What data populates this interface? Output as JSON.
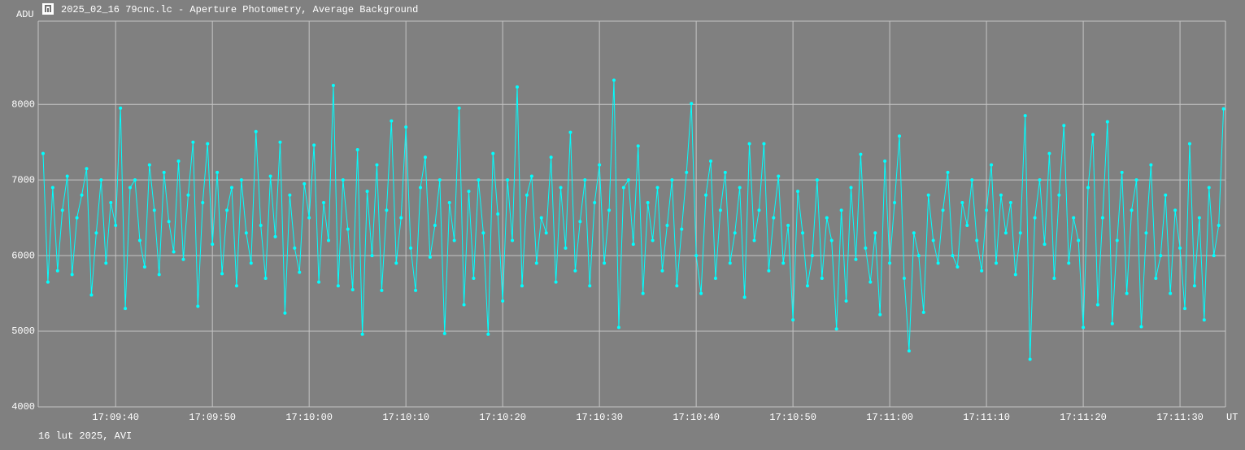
{
  "chart_data": {
    "type": "line",
    "title": "2025_02_16 79cnc.lc - Aperture Photometry, Average Background",
    "y_label": "ADU",
    "x_label": "UT",
    "footer": "16 lut 2025, AVI",
    "grid": true,
    "ylim": [
      4000,
      9100
    ],
    "yticks": [
      4000,
      5000,
      6000,
      7000,
      8000
    ],
    "xlim": [
      61772.0,
      61894.7
    ],
    "xticks": [
      {
        "value": 61780,
        "label": "17:09:40"
      },
      {
        "value": 61790,
        "label": "17:09:50"
      },
      {
        "value": 61800,
        "label": "17:10:00"
      },
      {
        "value": 61810,
        "label": "17:10:10"
      },
      {
        "value": 61820,
        "label": "17:10:20"
      },
      {
        "value": 61830,
        "label": "17:10:30"
      },
      {
        "value": 61840,
        "label": "17:10:40"
      },
      {
        "value": 61850,
        "label": "17:10:50"
      },
      {
        "value": 61860,
        "label": "17:11:00"
      },
      {
        "value": 61870,
        "label": "17:11:10"
      },
      {
        "value": 61880,
        "label": "17:11:20"
      },
      {
        "value": 61890,
        "label": "17:11:30"
      }
    ],
    "x": [
      61772.5,
      61773,
      61773.5,
      61774,
      61774.5,
      61775,
      61775.5,
      61776,
      61776.5,
      61777,
      61777.5,
      61778,
      61778.5,
      61779,
      61779.5,
      61780,
      61780.5,
      61781,
      61781.5,
      61782,
      61782.5,
      61783,
      61783.5,
      61784,
      61784.5,
      61785,
      61785.5,
      61786,
      61786.5,
      61787,
      61787.5,
      61788,
      61788.5,
      61789,
      61789.5,
      61790,
      61790.5,
      61791,
      61791.5,
      61792,
      61792.5,
      61793,
      61793.5,
      61794,
      61794.5,
      61795,
      61795.5,
      61796,
      61796.5,
      61797,
      61797.5,
      61798,
      61798.5,
      61799,
      61799.5,
      61800,
      61800.5,
      61801,
      61801.5,
      61802,
      61802.5,
      61803,
      61803.5,
      61804,
      61804.5,
      61805,
      61805.5,
      61806,
      61806.5,
      61807,
      61807.5,
      61808,
      61808.5,
      61809,
      61809.5,
      61810,
      61810.5,
      61811,
      61811.5,
      61812,
      61812.5,
      61813,
      61813.5,
      61814,
      61814.5,
      61815,
      61815.5,
      61816,
      61816.5,
      61817,
      61817.5,
      61818,
      61818.5,
      61819,
      61819.5,
      61820,
      61820.5,
      61821,
      61821.5,
      61822,
      61822.5,
      61823,
      61823.5,
      61824,
      61824.5,
      61825,
      61825.5,
      61826,
      61826.5,
      61827,
      61827.5,
      61828,
      61828.5,
      61829,
      61829.5,
      61830,
      61830.5,
      61831,
      61831.5,
      61832,
      61832.5,
      61833,
      61833.5,
      61834,
      61834.5,
      61835,
      61835.5,
      61836,
      61836.5,
      61837,
      61837.5,
      61838,
      61838.5,
      61839,
      61839.5,
      61840,
      61840.5,
      61841,
      61841.5,
      61842,
      61842.5,
      61843,
      61843.5,
      61844,
      61844.5,
      61845,
      61845.5,
      61846,
      61846.5,
      61847,
      61847.5,
      61848,
      61848.5,
      61849,
      61849.5,
      61850,
      61850.5,
      61851,
      61851.5,
      61852,
      61852.5,
      61853,
      61853.5,
      61854,
      61854.5,
      61855,
      61855.5,
      61856,
      61856.5,
      61857,
      61857.5,
      61858,
      61858.5,
      61859,
      61859.5,
      61860,
      61860.5,
      61861,
      61861.5,
      61862,
      61862.5,
      61863,
      61863.5,
      61864,
      61864.5,
      61865,
      61865.5,
      61866,
      61866.5,
      61867,
      61867.5,
      61868,
      61868.5,
      61869,
      61869.5,
      61870,
      61870.5,
      61871,
      61871.5,
      61872,
      61872.5,
      61873,
      61873.5,
      61874,
      61874.5,
      61875,
      61875.5,
      61876,
      61876.5,
      61877,
      61877.5,
      61878,
      61878.5,
      61879,
      61879.5,
      61880,
      61880.5,
      61881,
      61881.5,
      61882,
      61882.5,
      61883,
      61883.5,
      61884,
      61884.5,
      61885,
      61885.5,
      61886,
      61886.5,
      61887,
      61887.5,
      61888,
      61888.5,
      61889,
      61889.5,
      61890,
      61890.5,
      61891,
      61891.5,
      61892,
      61892.5,
      61893,
      61893.5,
      61894,
      61894.5
    ],
    "series": [
      {
        "color": "#00ffff",
        "values": [
          7350,
          5650,
          6900,
          5800,
          6600,
          7050,
          5750,
          6500,
          6800,
          7150,
          5480,
          6300,
          7000,
          5900,
          6700,
          6400,
          7950,
          5300,
          6900,
          7000,
          6200,
          5850,
          7200,
          6600,
          5750,
          7100,
          6450,
          6050,
          7250,
          5950,
          6800,
          7500,
          5330,
          6700,
          7480,
          6150,
          7100,
          5760,
          6600,
          6900,
          5600,
          7000,
          6300,
          5900,
          7640,
          6400,
          5700,
          7050,
          6250,
          7500,
          5240,
          6800,
          6100,
          5780,
          6950,
          6500,
          7460,
          5650,
          6700,
          6200,
          8250,
          5600,
          7000,
          6350,
          5550,
          7400,
          4960,
          6850,
          6000,
          7200,
          5540,
          6600,
          7780,
          5900,
          6500,
          7700,
          6100,
          5540,
          6900,
          7300,
          5980,
          6400,
          7000,
          4970,
          6700,
          6200,
          7950,
          5350,
          6850,
          5700,
          7000,
          6300,
          4960,
          7350,
          6550,
          5400,
          7000,
          6200,
          8230,
          5600,
          6800,
          7050,
          5900,
          6500,
          6300,
          7300,
          5650,
          6900,
          6100,
          7630,
          5800,
          6450,
          7000,
          5600,
          6700,
          7200,
          5900,
          6600,
          8320,
          5050,
          6900,
          7000,
          6150,
          7450,
          5500,
          6700,
          6200,
          6900,
          5800,
          6400,
          7000,
          5600,
          6350,
          7100,
          8010,
          6000,
          5500,
          6800,
          7250,
          5700,
          6600,
          7100,
          5900,
          6300,
          6900,
          5450,
          7480,
          6200,
          6600,
          7480,
          5800,
          6500,
          7050,
          5900,
          6400,
          5150,
          6850,
          6300,
          5600,
          6000,
          7000,
          5700,
          6500,
          6200,
          5030,
          6600,
          5400,
          6900,
          5950,
          7340,
          6100,
          5650,
          6300,
          5220,
          7250,
          5900,
          6700,
          7580,
          5700,
          4740,
          6300,
          6000,
          5250,
          6800,
          6200,
          5900,
          6600,
          7100,
          6000,
          5850,
          6700,
          6400,
          7000,
          6200,
          5800,
          6600,
          7200,
          5900,
          6800,
          6300,
          6700,
          5750,
          6300,
          7850,
          4630,
          6500,
          7000,
          6150,
          7350,
          5700,
          6800,
          7720,
          5900,
          6500,
          6200,
          5050,
          6900,
          7600,
          5350,
          6500,
          7770,
          5100,
          6200,
          7100,
          5500,
          6600,
          7000,
          5060,
          6300,
          7200,
          5700,
          6000,
          6800,
          5500,
          6600,
          6100,
          5300,
          7480,
          5600,
          6500,
          5150,
          6900,
          6000,
          6400,
          7940
        ]
      }
    ]
  }
}
